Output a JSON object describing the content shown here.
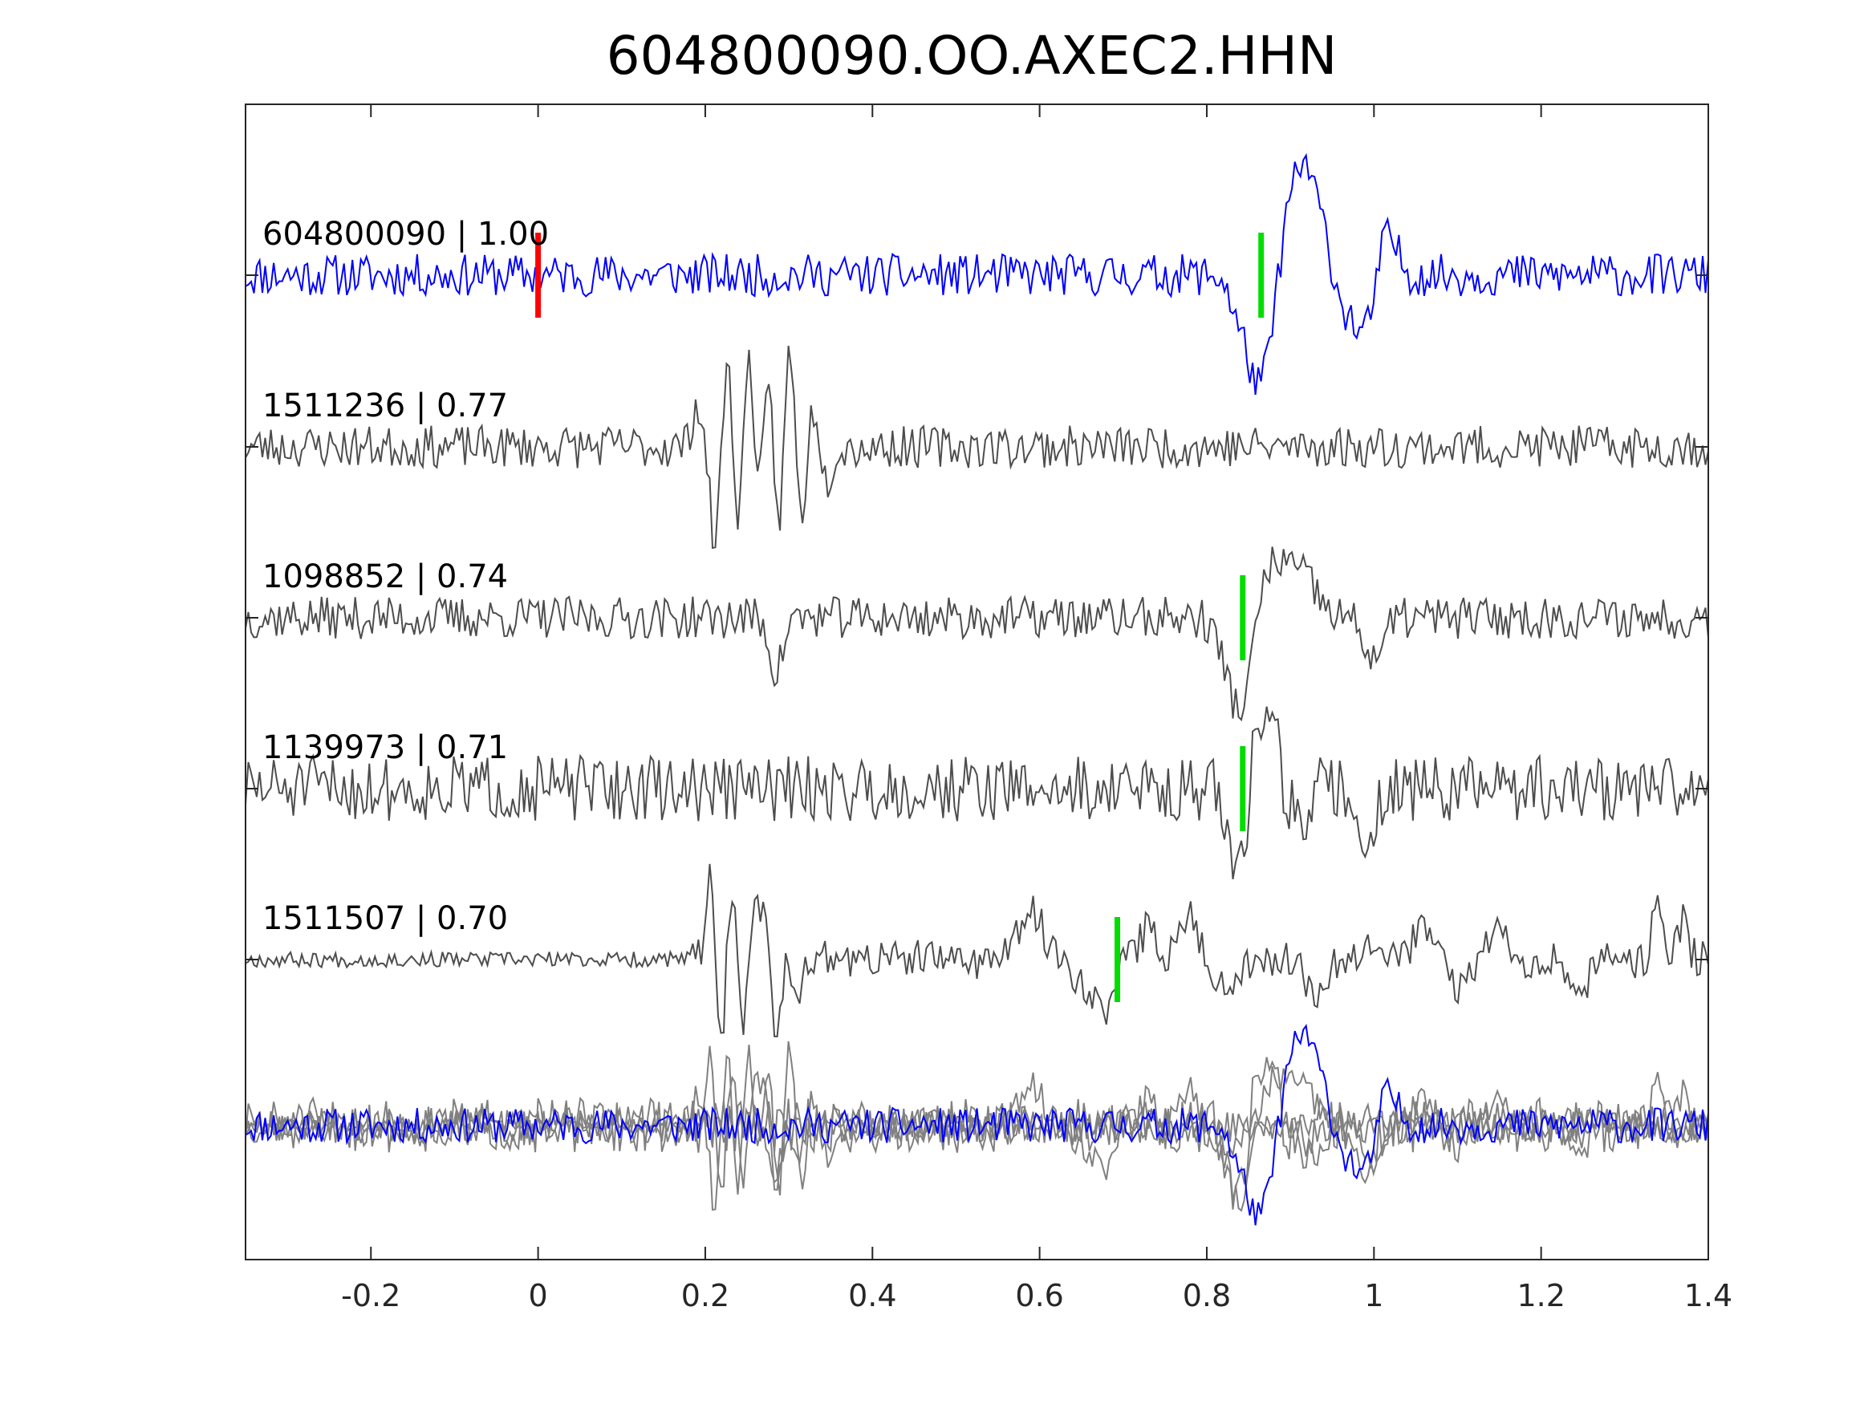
{
  "page": {
    "title": "604800090.OO.AXEC2.HHN"
  },
  "chart_data": {
    "type": "line",
    "title": "604800090.OO.AXEC2.HHN",
    "xlabel": "",
    "ylabel": "",
    "xlim": [
      -0.35,
      1.4
    ],
    "xticks": [
      -0.2,
      0,
      0.2,
      0.4,
      0.6,
      0.8,
      1,
      1.2,
      1.4
    ],
    "xtick_labels": [
      "-0.2",
      "0",
      "0.2",
      "0.4",
      "0.6",
      "0.8",
      "1",
      "1.2",
      "1.4"
    ],
    "grid": false,
    "colors": {
      "template": "#0000ff",
      "match": "#4d4d4d",
      "stack_match": "#808080",
      "origin_pick": "#ff0000",
      "phase_pick": "#00dd00",
      "axes": "#262626"
    },
    "traces": [
      {
        "label": "604800090 | 1.00",
        "id": "604800090",
        "correlation": 1.0,
        "kind": "template",
        "picks": [
          {
            "phase": "origin",
            "time": 0.0,
            "color": "#ff0000"
          },
          {
            "phase": "arrival",
            "time": 0.865,
            "color": "#00dd00"
          }
        ],
        "events": [
          {
            "t": 0.835,
            "a": -0.25,
            "w": 0.008
          },
          {
            "t": 0.862,
            "a": -1.15,
            "w": 0.015
          },
          {
            "t": 0.897,
            "a": 0.55,
            "w": 0.01
          },
          {
            "t": 0.918,
            "a": 1.05,
            "w": 0.012
          },
          {
            "t": 0.94,
            "a": 0.35,
            "w": 0.01
          },
          {
            "t": 0.965,
            "a": -0.3,
            "w": 0.012
          },
          {
            "t": 0.99,
            "a": -0.6,
            "w": 0.012
          },
          {
            "t": 1.015,
            "a": 0.45,
            "w": 0.012
          }
        ],
        "noise": 0.22,
        "seed": 11
      },
      {
        "label": "1511236 | 0.77",
        "id": "1511236",
        "correlation": 0.77,
        "kind": "match",
        "picks": [],
        "events": [
          {
            "t": 0.19,
            "a": 0.45,
            "w": 0.006
          },
          {
            "t": 0.212,
            "a": -1.05,
            "w": 0.006
          },
          {
            "t": 0.226,
            "a": 0.95,
            "w": 0.006
          },
          {
            "t": 0.24,
            "a": -0.85,
            "w": 0.006
          },
          {
            "t": 0.252,
            "a": 1.05,
            "w": 0.006
          },
          {
            "t": 0.265,
            "a": -0.55,
            "w": 0.006
          },
          {
            "t": 0.276,
            "a": 0.75,
            "w": 0.006
          },
          {
            "t": 0.288,
            "a": -0.95,
            "w": 0.006
          },
          {
            "t": 0.301,
            "a": 1.15,
            "w": 0.006
          },
          {
            "t": 0.314,
            "a": -0.8,
            "w": 0.006
          },
          {
            "t": 0.33,
            "a": 0.45,
            "w": 0.006
          },
          {
            "t": 0.345,
            "a": -0.35,
            "w": 0.006
          }
        ],
        "noise": 0.22,
        "seed": 23
      },
      {
        "label": "1098852 | 0.74",
        "id": "1098852",
        "correlation": 0.74,
        "kind": "match",
        "picks": [
          {
            "phase": "arrival",
            "time": 0.843,
            "color": "#00dd00"
          }
        ],
        "events": [
          {
            "t": 0.285,
            "a": -0.55,
            "w": 0.008
          },
          {
            "t": 0.84,
            "a": -0.95,
            "w": 0.017
          },
          {
            "t": 0.866,
            "a": 0.45,
            "w": 0.01
          },
          {
            "t": 0.89,
            "a": 0.55,
            "w": 0.014
          },
          {
            "t": 0.92,
            "a": 0.35,
            "w": 0.014
          },
          {
            "t": 1.0,
            "a": -0.4,
            "w": 0.012
          }
        ],
        "noise": 0.22,
        "seed": 37
      },
      {
        "label": "1139973 | 0.71",
        "id": "1139973",
        "correlation": 0.71,
        "kind": "match",
        "picks": [
          {
            "phase": "arrival",
            "time": 0.843,
            "color": "#00dd00"
          }
        ],
        "events": [
          {
            "t": 0.838,
            "a": -0.85,
            "w": 0.012
          },
          {
            "t": 0.862,
            "a": 0.75,
            "w": 0.01
          },
          {
            "t": 0.878,
            "a": 0.65,
            "w": 0.008
          },
          {
            "t": 0.91,
            "a": -0.35,
            "w": 0.01
          },
          {
            "t": 0.99,
            "a": -0.6,
            "w": 0.01
          }
        ],
        "noise": 0.34,
        "seed": 51
      },
      {
        "label": "1511507 | 0.70",
        "id": "1511507",
        "correlation": 0.7,
        "kind": "match",
        "picks": [
          {
            "phase": "arrival",
            "time": 0.693,
            "color": "#00dd00"
          }
        ],
        "events": [
          {
            "t": 0.205,
            "a": 0.85,
            "w": 0.005
          },
          {
            "t": 0.218,
            "a": -0.95,
            "w": 0.005
          },
          {
            "t": 0.232,
            "a": 0.75,
            "w": 0.005
          },
          {
            "t": 0.246,
            "a": -0.65,
            "w": 0.005
          },
          {
            "t": 0.26,
            "a": 0.6,
            "w": 0.005
          },
          {
            "t": 0.272,
            "a": 0.45,
            "w": 0.005
          },
          {
            "t": 0.285,
            "a": -0.8,
            "w": 0.005
          },
          {
            "t": 0.31,
            "a": -0.3,
            "w": 0.006
          },
          {
            "t": 0.59,
            "a": 0.5,
            "w": 0.014
          },
          {
            "t": 0.655,
            "a": -0.25,
            "w": 0.012
          },
          {
            "t": 0.68,
            "a": -0.5,
            "w": 0.01
          },
          {
            "t": 0.73,
            "a": 0.3,
            "w": 0.012
          },
          {
            "t": 0.78,
            "a": 0.5,
            "w": 0.01
          },
          {
            "t": 0.82,
            "a": -0.3,
            "w": 0.012
          },
          {
            "t": 0.93,
            "a": -0.3,
            "w": 0.012
          },
          {
            "t": 1.0,
            "a": 0.25,
            "w": 0.012
          },
          {
            "t": 1.06,
            "a": 0.35,
            "w": 0.012
          },
          {
            "t": 1.1,
            "a": -0.3,
            "w": 0.012
          },
          {
            "t": 1.15,
            "a": 0.3,
            "w": 0.012
          },
          {
            "t": 1.25,
            "a": -0.25,
            "w": 0.012
          },
          {
            "t": 1.34,
            "a": 0.65,
            "w": 0.006
          },
          {
            "t": 1.37,
            "a": 0.4,
            "w": 0.006
          }
        ],
        "noise": 0.08,
        "noise_after": 0.2,
        "noise_split": 0.18,
        "seed": 67
      }
    ],
    "stack": {
      "description": "overlay of all traces",
      "template_index": 0
    }
  }
}
